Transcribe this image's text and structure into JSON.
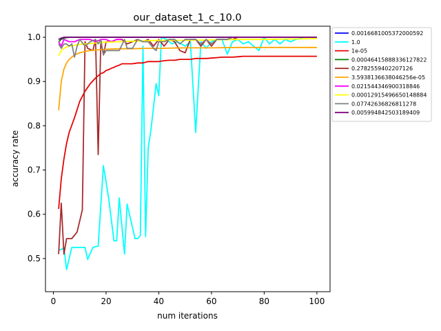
{
  "chart_data": {
    "type": "line",
    "title": "our_dataset_1_c_10.0",
    "xlabel": "num iterations",
    "ylabel": "accuracy rate",
    "xlim": [
      -3,
      105
    ],
    "ylim": [
      0.425,
      1.025
    ],
    "xticks": [
      0,
      20,
      40,
      60,
      80,
      100
    ],
    "yticks": [
      0.5,
      0.6,
      0.7,
      0.8,
      0.9,
      1.0
    ],
    "grid": false,
    "legend_position": "outside-top-right",
    "series": [
      {
        "name": "0.0016681005372000592",
        "color": "#0000ff",
        "x": [
          2,
          3,
          4,
          6,
          8,
          10,
          20,
          40,
          60,
          80,
          100
        ],
        "y": [
          0.995,
          0.998,
          0.999,
          1.0,
          1.0,
          1.0,
          1.0,
          1.0,
          1.0,
          1.0,
          1.0
        ]
      },
      {
        "name": "1.0",
        "color": "#00ffff",
        "x": [
          2,
          3,
          4,
          5,
          7,
          9,
          12,
          13,
          15,
          17,
          19,
          21,
          23,
          24,
          25,
          27,
          28,
          31,
          32,
          33,
          34,
          35,
          36,
          37,
          39,
          40,
          41,
          43,
          45,
          47,
          50,
          52,
          54,
          56,
          58,
          60,
          62,
          64,
          66,
          68,
          70,
          72,
          74,
          76,
          78,
          80,
          82,
          84,
          86,
          88,
          90,
          92,
          95,
          100
        ],
        "y": [
          0.52,
          0.52,
          0.525,
          0.475,
          0.525,
          0.525,
          0.525,
          0.498,
          0.525,
          0.528,
          0.71,
          0.635,
          0.54,
          0.54,
          0.637,
          0.51,
          0.623,
          0.545,
          0.545,
          0.552,
          0.98,
          0.55,
          0.75,
          0.79,
          0.895,
          0.868,
          1.0,
          0.995,
          0.985,
          0.99,
          0.98,
          0.99,
          0.785,
          0.99,
          0.975,
          0.99,
          0.995,
          0.995,
          0.962,
          0.99,
          0.995,
          0.985,
          0.99,
          0.98,
          0.97,
          1.0,
          0.985,
          0.995,
          0.985,
          0.995,
          0.99,
          0.995,
          1.0,
          1.0
        ]
      },
      {
        "name": "1e-05",
        "color": "#e60000",
        "x": [
          2,
          3,
          4,
          5,
          6,
          8,
          10,
          12,
          14,
          16,
          18,
          19,
          20,
          21,
          22,
          23,
          24,
          25,
          26,
          28,
          30,
          32,
          34,
          36,
          38,
          40,
          42,
          44,
          46,
          48,
          50,
          52,
          54,
          56,
          58,
          60,
          62,
          64,
          66,
          68,
          70,
          72,
          75,
          80,
          85,
          90,
          95,
          100
        ],
        "y": [
          0.612,
          0.68,
          0.725,
          0.76,
          0.785,
          0.818,
          0.855,
          0.878,
          0.895,
          0.908,
          0.918,
          0.92,
          0.925,
          0.927,
          0.93,
          0.932,
          0.935,
          0.937,
          0.94,
          0.94,
          0.94,
          0.942,
          0.942,
          0.945,
          0.945,
          0.945,
          0.947,
          0.948,
          0.948,
          0.95,
          0.95,
          0.95,
          0.952,
          0.952,
          0.952,
          0.953,
          0.954,
          0.955,
          0.955,
          0.955,
          0.956,
          0.957,
          0.957,
          0.957,
          0.957,
          0.957,
          0.957,
          0.957
        ]
      },
      {
        "name": "0.00046415888336127822",
        "color": "#008000",
        "x": [
          2,
          3,
          4,
          6,
          8,
          10,
          20,
          40,
          60,
          80,
          100
        ],
        "y": [
          0.99,
          0.995,
          0.998,
          1.0,
          1.0,
          1.0,
          1.0,
          1.0,
          1.0,
          1.0,
          1.0
        ]
      },
      {
        "name": "0.2782559402207126",
        "color": "#a52a2a",
        "x": [
          2,
          3,
          4,
          5,
          7,
          9,
          11,
          12,
          13,
          15,
          16,
          17,
          18,
          19,
          20,
          22,
          24,
          26,
          28,
          30,
          32,
          34,
          36,
          38,
          40,
          42,
          44,
          46,
          48,
          50,
          52,
          54,
          56,
          58,
          60,
          62,
          64,
          66,
          68,
          70,
          75,
          80,
          85,
          90,
          95,
          100
        ],
        "y": [
          0.51,
          0.625,
          0.51,
          0.545,
          0.545,
          0.56,
          0.61,
          0.99,
          0.975,
          0.97,
          0.995,
          0.735,
          0.99,
          0.96,
          0.99,
          0.99,
          0.995,
          0.995,
          0.985,
          0.99,
          0.995,
          0.99,
          0.995,
          0.98,
          0.995,
          0.98,
          0.995,
          0.99,
          0.97,
          0.965,
          0.995,
          0.995,
          0.98,
          0.995,
          0.98,
          0.995,
          0.995,
          0.995,
          0.995,
          1.0,
          1.0,
          1.0,
          1.0,
          1.0,
          1.0,
          1.0
        ]
      },
      {
        "name": "3.5938136638046256e-05",
        "color": "#ffa500",
        "x": [
          2,
          3,
          4,
          5,
          6,
          7,
          8,
          10,
          12,
          14,
          16,
          18,
          20,
          25,
          30,
          35,
          40,
          50,
          60,
          70,
          80,
          90,
          100
        ],
        "y": [
          0.835,
          0.9,
          0.928,
          0.942,
          0.95,
          0.955,
          0.96,
          0.965,
          0.968,
          0.97,
          0.971,
          0.972,
          0.973,
          0.974,
          0.974,
          0.975,
          0.975,
          0.976,
          0.976,
          0.977,
          0.977,
          0.977,
          0.977
        ]
      },
      {
        "name": "0.021544346900318846",
        "color": "#ff00ff",
        "x": [
          2,
          3,
          4,
          6,
          8,
          10,
          12,
          14,
          16,
          18,
          20,
          22,
          24,
          26
        ],
        "y": [
          0.99,
          0.98,
          0.995,
          0.99,
          0.99,
          0.995,
          0.995,
          0.995,
          0.99,
          0.995,
          0.995,
          0.99,
          0.995,
          0.995
        ]
      },
      {
        "name": "0.00012915496650148884",
        "color": "#ffff00",
        "x": [
          2,
          3,
          4,
          5,
          6,
          8,
          10,
          12,
          14,
          16,
          18,
          20,
          25,
          30,
          35,
          40,
          50,
          60,
          70,
          80,
          90,
          100
        ],
        "y": [
          0.958,
          0.97,
          0.975,
          0.978,
          0.98,
          0.982,
          0.984,
          0.985,
          0.986,
          0.987,
          0.988,
          0.989,
          0.99,
          0.991,
          0.992,
          0.993,
          0.993,
          0.994,
          0.995,
          0.995,
          0.996,
          0.997
        ]
      },
      {
        "name": "0.07742636826811278",
        "color": "#808080",
        "x": [
          2,
          3,
          4,
          5,
          6,
          7,
          8,
          9,
          10,
          12,
          14,
          16,
          17,
          18,
          19,
          20,
          22,
          24,
          25,
          27,
          28,
          30,
          32,
          34,
          36,
          38,
          39,
          40,
          42,
          44,
          46,
          48,
          50,
          52,
          54,
          56,
          58,
          60,
          62,
          64,
          66,
          68,
          70,
          75,
          80,
          85,
          90,
          95,
          100
        ],
        "y": [
          0.985,
          0.975,
          0.985,
          0.985,
          0.98,
          0.985,
          0.955,
          0.98,
          0.995,
          0.98,
          0.99,
          0.995,
          0.985,
          0.995,
          0.96,
          0.97,
          0.97,
          0.97,
          0.97,
          0.995,
          0.975,
          0.975,
          0.995,
          0.99,
          0.99,
          0.975,
          0.97,
          0.99,
          0.99,
          0.995,
          0.995,
          0.985,
          0.995,
          0.995,
          0.995,
          0.985,
          0.995,
          0.985,
          0.995,
          0.995,
          0.995,
          1.0,
          1.0,
          1.0,
          1.0,
          1.0,
          1.0,
          1.0,
          1.0
        ]
      },
      {
        "name": "0.005994842503189409",
        "color": "#800080",
        "x": [
          2,
          3,
          4,
          6,
          8,
          10,
          20,
          30,
          40,
          50,
          60,
          70,
          80,
          90,
          100
        ],
        "y": [
          0.995,
          0.998,
          1.0,
          1.0,
          1.0,
          1.0,
          1.0,
          1.0,
          1.0,
          1.0,
          1.0,
          1.0,
          1.0,
          1.0,
          1.0
        ]
      }
    ]
  }
}
